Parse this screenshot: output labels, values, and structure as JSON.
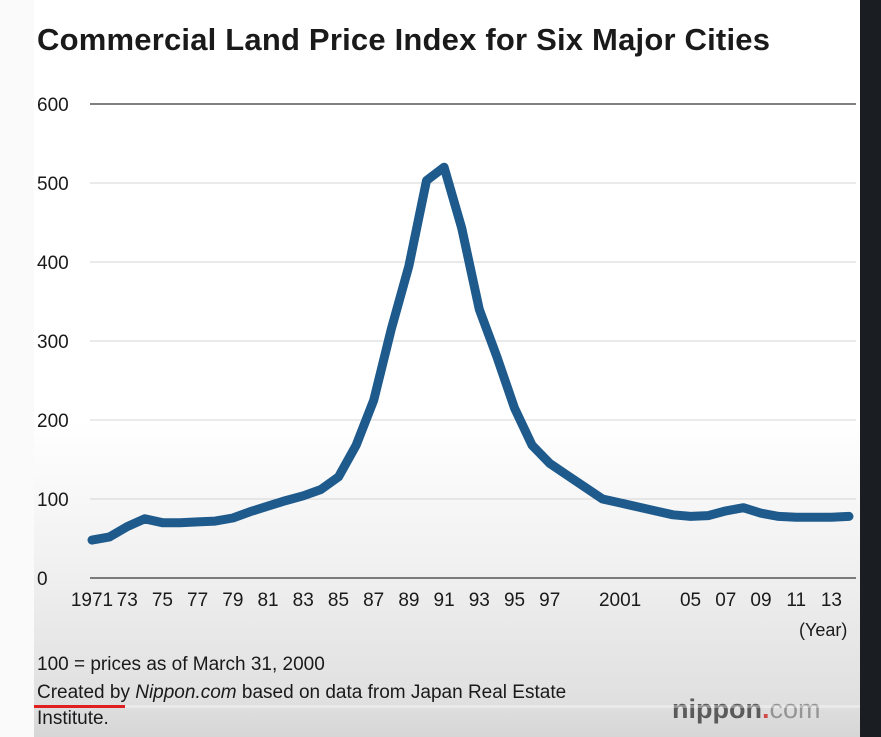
{
  "title": "Commercial Land Price Index for Six Major Cities",
  "x_unit": "(Year)",
  "note": "100 = prices as of March 31, 2000",
  "credit": {
    "prefix": "Created by ",
    "source": "Nippon.com",
    "suffix": " based on data from Japan Real Estate Institute."
  },
  "brand": {
    "name": "nippon",
    "dot": ".",
    "tld": "com"
  },
  "video": {
    "progress_fraction": 0.11
  },
  "chart_data": {
    "type": "line",
    "title": "Commercial Land Price Index for Six Major Cities",
    "xlabel": "(Year)",
    "ylabel": "",
    "ylim": [
      0,
      600
    ],
    "yticks": [
      0,
      100,
      200,
      300,
      400,
      500,
      600
    ],
    "xlim": [
      1971,
      2015
    ],
    "grid": true,
    "xtick_labels": [
      {
        "year": 1971,
        "label": "1971"
      },
      {
        "year": 1973,
        "label": "73"
      },
      {
        "year": 1975,
        "label": "75"
      },
      {
        "year": 1977,
        "label": "77"
      },
      {
        "year": 1979,
        "label": "79"
      },
      {
        "year": 1981,
        "label": "81"
      },
      {
        "year": 1983,
        "label": "83"
      },
      {
        "year": 1985,
        "label": "85"
      },
      {
        "year": 1987,
        "label": "87"
      },
      {
        "year": 1989,
        "label": "89"
      },
      {
        "year": 1991,
        "label": "91"
      },
      {
        "year": 1993,
        "label": "93"
      },
      {
        "year": 1995,
        "label": "95"
      },
      {
        "year": 1997,
        "label": "97"
      },
      {
        "year": 2001,
        "label": "2001"
      },
      {
        "year": 2005,
        "label": "05"
      },
      {
        "year": 2007,
        "label": "07"
      },
      {
        "year": 2009,
        "label": "09"
      },
      {
        "year": 2011,
        "label": "11"
      },
      {
        "year": 2013,
        "label": "13"
      }
    ],
    "series": [
      {
        "color": "#1e5a8c",
        "x": [
          1971,
          1972,
          1973,
          1974,
          1975,
          1976,
          1977,
          1978,
          1979,
          1980,
          1981,
          1982,
          1983,
          1984,
          1985,
          1986,
          1987,
          1988,
          1989,
          1990,
          1991,
          1992,
          1993,
          1994,
          1995,
          1996,
          1997,
          1998,
          1999,
          2000,
          2001,
          2002,
          2003,
          2004,
          2005,
          2006,
          2007,
          2008,
          2009,
          2010,
          2011,
          2012,
          2013,
          2014
        ],
        "values": [
          48,
          52,
          65,
          75,
          70,
          70,
          71,
          72,
          76,
          84,
          91,
          98,
          104,
          112,
          128,
          168,
          225,
          315,
          395,
          503,
          520,
          443,
          340,
          280,
          215,
          168,
          145,
          130,
          115,
          100,
          95,
          90,
          85,
          80,
          78,
          79,
          85,
          89,
          82,
          78,
          77,
          77,
          77,
          78
        ]
      }
    ]
  }
}
